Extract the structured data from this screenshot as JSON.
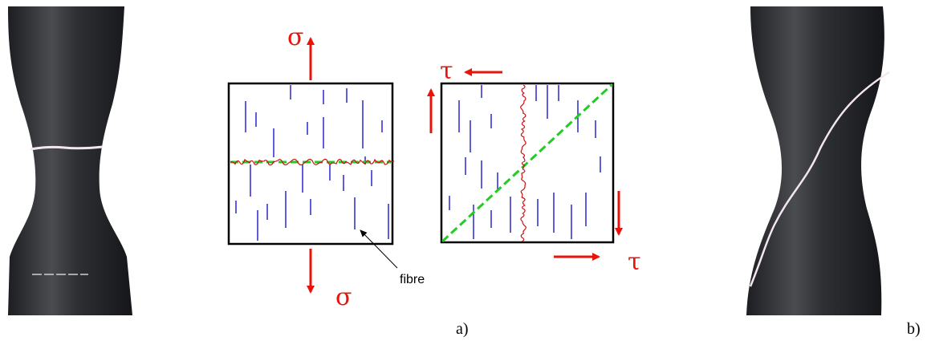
{
  "panel_a": {
    "normal_stress": {
      "top": "σ",
      "bottom": "σ"
    },
    "shear_stress": {
      "top": "τ",
      "bottom": "τ"
    },
    "fibre_label": "fibre",
    "caption": "a)"
  },
  "panel_b": {
    "caption": "b)"
  }
}
